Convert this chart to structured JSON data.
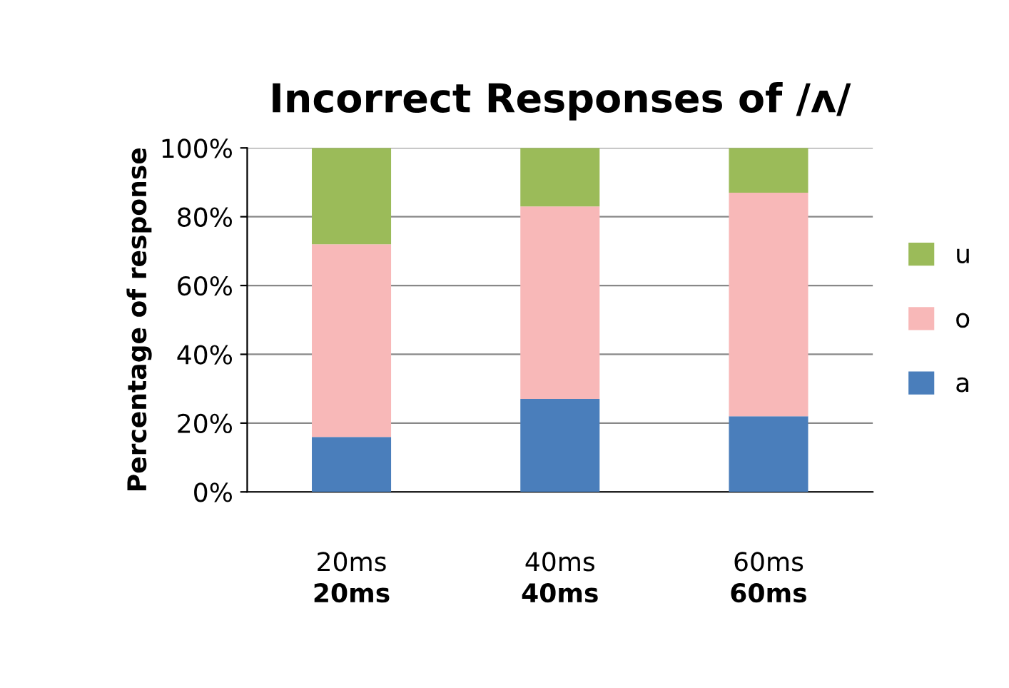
{
  "chart_data": {
    "type": "bar",
    "title": "Incorrect Responses of /ʌ/",
    "ylabel": "Percentage of response",
    "categories": [
      "20ms",
      "40ms",
      "60ms"
    ],
    "series": [
      {
        "name": "a",
        "color": "#4a7ebb",
        "values": [
          16,
          27,
          22
        ]
      },
      {
        "name": "o",
        "color": "#f8b8b8",
        "values": [
          56,
          56,
          65
        ]
      },
      {
        "name": "u",
        "color": "#9bbb59",
        "values": [
          28,
          17,
          13
        ]
      }
    ],
    "stacked": true,
    "ylim": [
      0,
      100
    ],
    "yticks": [
      {
        "value": 0,
        "label": "0%"
      },
      {
        "value": 20,
        "label": "20%"
      },
      {
        "value": 40,
        "label": "40%"
      },
      {
        "value": 60,
        "label": "60%"
      },
      {
        "value": 80,
        "label": "80%"
      },
      {
        "value": 100,
        "label": "100%"
      }
    ],
    "grid": "y",
    "legend": "right",
    "annotations": [
      "20ms",
      "40ms",
      "60ms"
    ]
  }
}
